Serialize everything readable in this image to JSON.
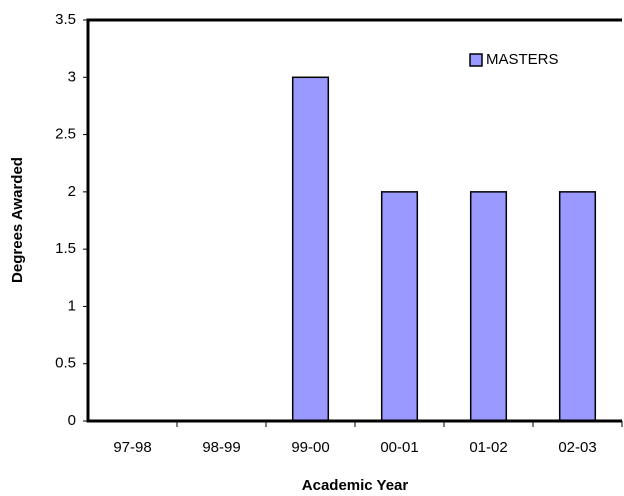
{
  "chart_data": {
    "type": "bar",
    "x_label": "Academic Year",
    "y_label": "Degrees Awarded",
    "categories": [
      "97-98",
      "98-99",
      "99-00",
      "00-01",
      "01-02",
      "02-03"
    ],
    "series": [
      {
        "name": "MASTERS",
        "color": "#9999ff",
        "values": [
          0,
          0,
          3,
          2,
          2,
          2
        ]
      }
    ],
    "ylim": [
      0,
      3.5
    ],
    "yticks": [
      0,
      0.5,
      1,
      1.5,
      2,
      2.5,
      3,
      3.5
    ],
    "grid": false,
    "legend": "upper right"
  }
}
